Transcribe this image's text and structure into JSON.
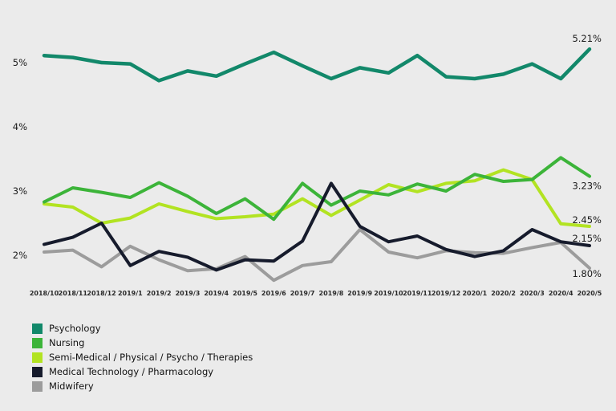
{
  "background_color": "#ebebeb",
  "chart_data": {
    "type": "line",
    "x": [
      "2018/10",
      "2018/11",
      "2018/12",
      "2019/1",
      "2019/2",
      "2019/3",
      "2019/4",
      "2019/5",
      "2019/6",
      "2019/7",
      "2019/8",
      "2019/9",
      "2019/10",
      "2019/11",
      "2019/12",
      "2020/1",
      "2020/2",
      "2020/3",
      "2020/4",
      "2020/5"
    ],
    "series": [
      {
        "name": "Psychology",
        "color": "#12886a",
        "end_label": "5.21%",
        "values": [
          5.11,
          5.08,
          5.0,
          4.98,
          4.72,
          4.87,
          4.79,
          4.98,
          5.16,
          4.95,
          4.75,
          4.92,
          4.84,
          5.11,
          4.78,
          4.75,
          4.82,
          4.98,
          4.75,
          5.21
        ]
      },
      {
        "name": "Nursing",
        "color": "#3cb439",
        "end_label": "3.23%",
        "values": [
          2.83,
          3.05,
          2.98,
          2.9,
          3.13,
          2.92,
          2.65,
          2.88,
          2.56,
          3.12,
          2.78,
          3.0,
          2.94,
          3.11,
          3.0,
          3.26,
          3.15,
          3.18,
          3.52,
          3.23
        ]
      },
      {
        "name": "Semi-Medical / Physical / Psycho / Therapies",
        "color": "#b2e322",
        "end_label": "2.45%",
        "values": [
          2.8,
          2.75,
          2.5,
          2.58,
          2.8,
          2.68,
          2.57,
          2.6,
          2.64,
          2.88,
          2.62,
          2.86,
          3.1,
          2.99,
          3.12,
          3.16,
          3.33,
          3.18,
          2.49,
          2.45
        ]
      },
      {
        "name": "Medical Technology / Pharmacology",
        "color": "#161b2c",
        "end_label": "2.15%",
        "values": [
          2.17,
          2.28,
          2.5,
          1.84,
          2.06,
          1.97,
          1.77,
          1.93,
          1.91,
          2.22,
          3.12,
          2.45,
          2.21,
          2.3,
          2.09,
          1.98,
          2.07,
          2.4,
          2.21,
          2.15
        ]
      },
      {
        "name": "Midwifery",
        "color": "#9c9c9c",
        "end_label": "1.80%",
        "values": [
          2.05,
          2.08,
          1.82,
          2.14,
          1.93,
          1.76,
          1.79,
          1.98,
          1.61,
          1.84,
          1.9,
          2.4,
          2.05,
          1.96,
          2.07,
          2.04,
          2.03,
          2.12,
          2.2,
          1.8
        ]
      }
    ],
    "y_ticks": [
      {
        "label": "5%",
        "value": 5
      },
      {
        "label": "4%",
        "value": 4
      },
      {
        "label": "3%",
        "value": 3
      },
      {
        "label": "2%",
        "value": 2
      }
    ],
    "ylim": [
      1.45,
      5.45
    ],
    "grid": false,
    "legend_position": "bottom-left",
    "title": "",
    "xlabel": "",
    "ylabel": ""
  }
}
